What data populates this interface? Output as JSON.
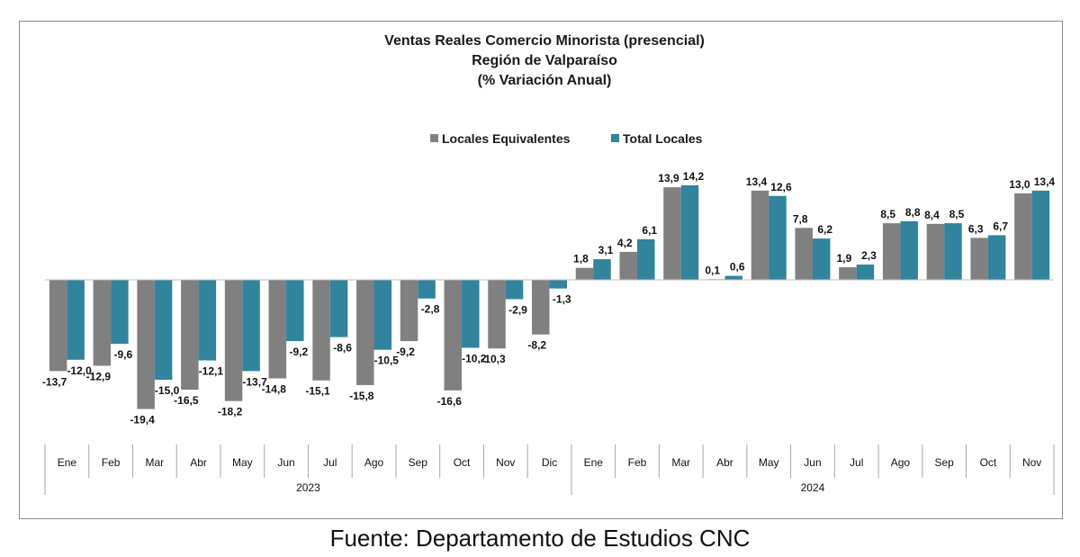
{
  "chart_data": {
    "type": "bar",
    "title": [
      "Ventas Reales Comercio Minorista (presencial)",
      "Región de Valparaíso",
      "(% Variación Anual)"
    ],
    "legend_position": "top-center",
    "grid": false,
    "ylim": [
      -22,
      16
    ],
    "categories": [
      "Ene",
      "Feb",
      "Mar",
      "Abr",
      "May",
      "Jun",
      "Jul",
      "Ago",
      "Sep",
      "Oct",
      "Nov",
      "Dic",
      "Ene",
      "Feb",
      "Mar",
      "Abr",
      "May",
      "Jun",
      "Jul",
      "Ago",
      "Sep",
      "Oct",
      "Nov"
    ],
    "groups": [
      {
        "label": "2023",
        "start": 0,
        "count": 12
      },
      {
        "label": "2024",
        "start": 12,
        "count": 11
      }
    ],
    "series": [
      {
        "name": "Locales Equivalentes",
        "color": "#808080",
        "values": [
          -13.7,
          -12.9,
          -19.4,
          -16.5,
          -18.2,
          -14.8,
          -15.1,
          -15.8,
          -9.2,
          -16.6,
          -10.3,
          -8.2,
          1.8,
          4.2,
          13.9,
          0.1,
          13.4,
          7.8,
          1.9,
          8.5,
          8.4,
          6.3,
          13.0
        ],
        "labels": [
          "-13,7",
          "-12,9",
          "-19,4",
          "-16,5",
          "-18,2",
          "-14,8",
          "-15,1",
          "-15,8",
          "-9,2",
          "-16,6",
          "-10,3",
          "-8,2",
          "1,8",
          "4,2",
          "13,9",
          "0,1",
          "13,4",
          "7,8",
          "1,9",
          "8,5",
          "8,4",
          "6,3",
          "13,0"
        ]
      },
      {
        "name": "Total Locales",
        "color": "#31849B",
        "values": [
          -12.0,
          -9.6,
          -15.0,
          -12.1,
          -13.7,
          -9.2,
          -8.6,
          -10.5,
          -2.8,
          -10.2,
          -2.9,
          -1.3,
          3.1,
          6.1,
          14.2,
          0.6,
          12.6,
          6.2,
          2.3,
          8.8,
          8.5,
          6.7,
          13.4
        ],
        "labels": [
          "-12,0",
          "-9,6",
          "-15,0",
          "-12,1",
          "-13,7",
          "-9,2",
          "-8,6",
          "-10,5",
          "-2,8",
          "-10,2",
          "-2,9",
          "-1,3",
          "3,1",
          "6,1",
          "14,2",
          "0,6",
          "12,6",
          "6,2",
          "2,3",
          "8,8",
          "8,5",
          "6,7",
          "13,4"
        ]
      }
    ]
  },
  "footer": {
    "source": "Fuente: Departamento de Estudios CNC"
  }
}
